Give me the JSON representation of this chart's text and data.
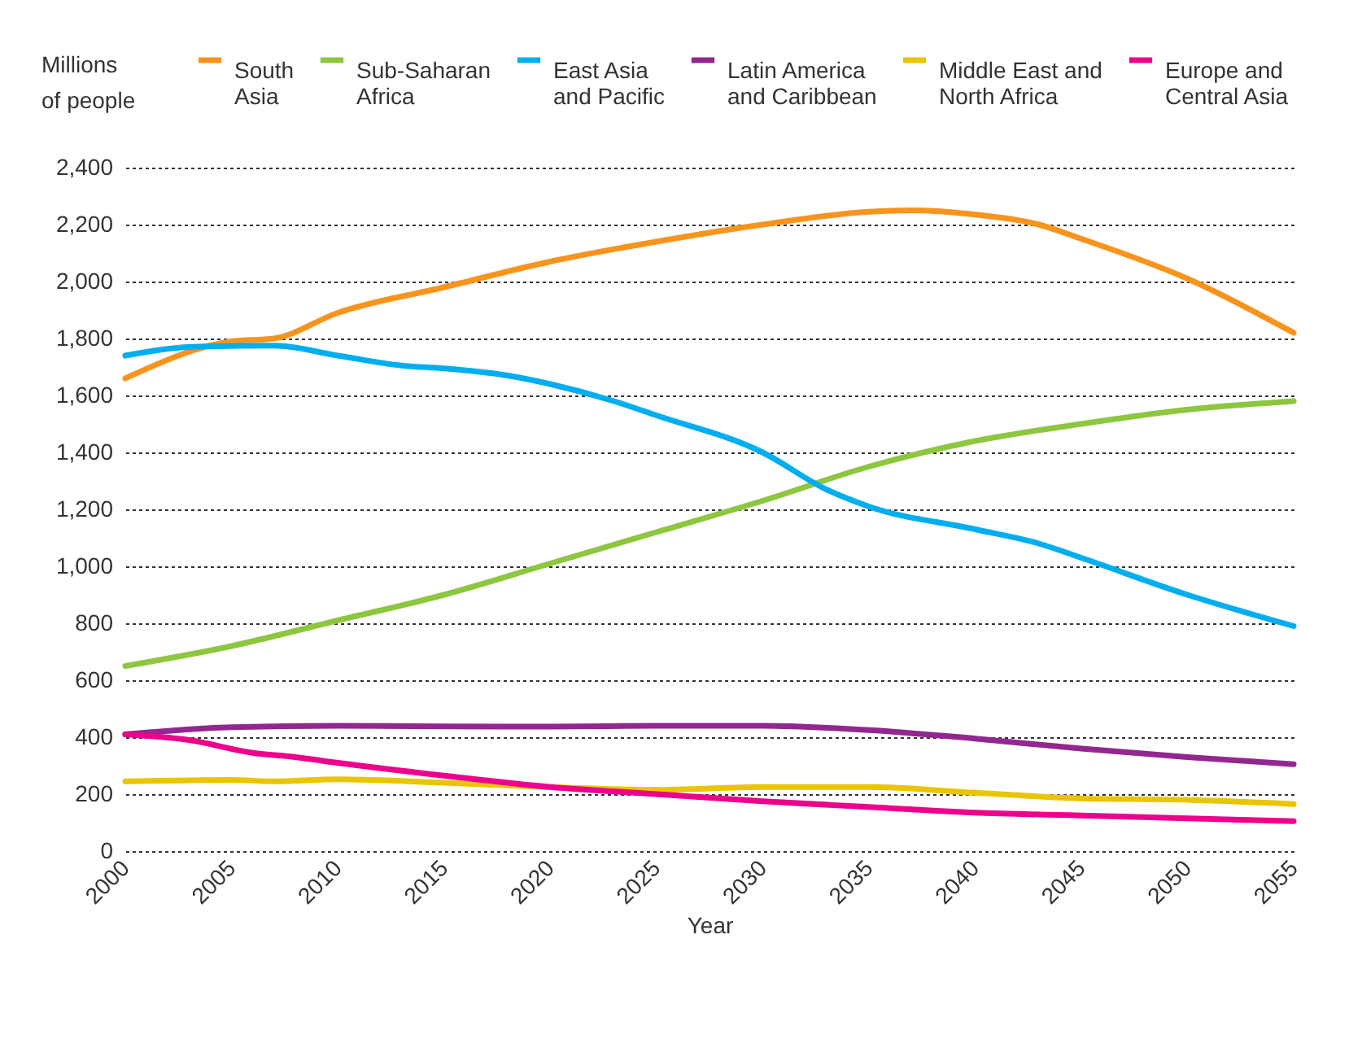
{
  "chart_data": {
    "type": "line",
    "xlabel": "Year",
    "ylabel": "Millions of people",
    "xlim": [
      2000,
      2055
    ],
    "xticks": [
      2000,
      2005,
      2010,
      2015,
      2020,
      2025,
      2030,
      2035,
      2040,
      2045,
      2050,
      2055
    ],
    "ylim": [
      0,
      2400
    ],
    "yticks": [
      0,
      200,
      400,
      600,
      800,
      {
        "value": 1000,
        "label": "1,000"
      },
      {
        "value": 1200,
        "label": "1,200"
      },
      {
        "value": 1400,
        "label": "1,400"
      },
      {
        "value": 1600,
        "label": "1,600"
      },
      {
        "value": 1800,
        "label": "1,800"
      },
      {
        "value": 2000,
        "label": "2,000"
      },
      {
        "value": 2200,
        "label": "2,200"
      },
      {
        "value": 2400,
        "label": "2,400"
      }
    ],
    "grid": "y",
    "legend": "top",
    "line_style": "solid",
    "marker": "none",
    "series": [
      {
        "name": "South Asia",
        "color": "#f7941d",
        "x": [
          2000,
          2005,
          2007,
          2010,
          2015,
          2020,
          2025,
          2030,
          2035,
          2037,
          2040,
          2043,
          2045,
          2050,
          2055
        ],
        "values": [
          1660,
          1790,
          1800,
          1890,
          1980,
          2070,
          2140,
          2200,
          2245,
          2250,
          2235,
          2200,
          2150,
          2010,
          1820
        ]
      },
      {
        "name": "Sub-Saharan Africa",
        "color": "#8dc63f",
        "x": [
          2000,
          2005,
          2010,
          2015,
          2020,
          2025,
          2030,
          2035,
          2040,
          2045,
          2050,
          2055
        ],
        "values": [
          650,
          720,
          810,
          900,
          1010,
          1120,
          1230,
          1350,
          1440,
          1500,
          1550,
          1580
        ]
      },
      {
        "name": "East Asia and Pacific",
        "color": "#00aeef",
        "x": [
          2000,
          2003,
          2007,
          2010,
          2013,
          2015,
          2018,
          2020,
          2023,
          2025,
          2030,
          2033,
          2035,
          2040,
          2043,
          2045,
          2050,
          2055
        ],
        "values": [
          1740,
          1770,
          1775,
          1740,
          1705,
          1695,
          1670,
          1640,
          1580,
          1530,
          1400,
          1270,
          1210,
          1130,
          1080,
          1030,
          900,
          790
        ]
      },
      {
        "name": "Latin America and Caribbean",
        "color": "#92278f",
        "x": [
          2000,
          2005,
          2010,
          2015,
          2020,
          2025,
          2030,
          2035,
          2040,
          2045,
          2050,
          2055
        ],
        "values": [
          410,
          435,
          440,
          438,
          437,
          440,
          440,
          425,
          395,
          360,
          330,
          305
        ]
      },
      {
        "name": "Middle East and North Africa",
        "color": "#e8c500",
        "x": [
          2000,
          2005,
          2007,
          2010,
          2015,
          2020,
          2025,
          2030,
          2035,
          2040,
          2045,
          2050,
          2055
        ],
        "values": [
          245,
          250,
          245,
          252,
          240,
          225,
          215,
          225,
          225,
          205,
          185,
          180,
          165
        ]
      },
      {
        "name": "Europe and Central Asia",
        "color": "#ec008c",
        "x": [
          2000,
          2003,
          2006,
          2008,
          2010,
          2015,
          2020,
          2025,
          2030,
          2035,
          2040,
          2045,
          2050,
          2055
        ],
        "values": [
          410,
          390,
          345,
          330,
          310,
          265,
          225,
          200,
          175,
          155,
          135,
          125,
          115,
          105
        ]
      }
    ]
  }
}
